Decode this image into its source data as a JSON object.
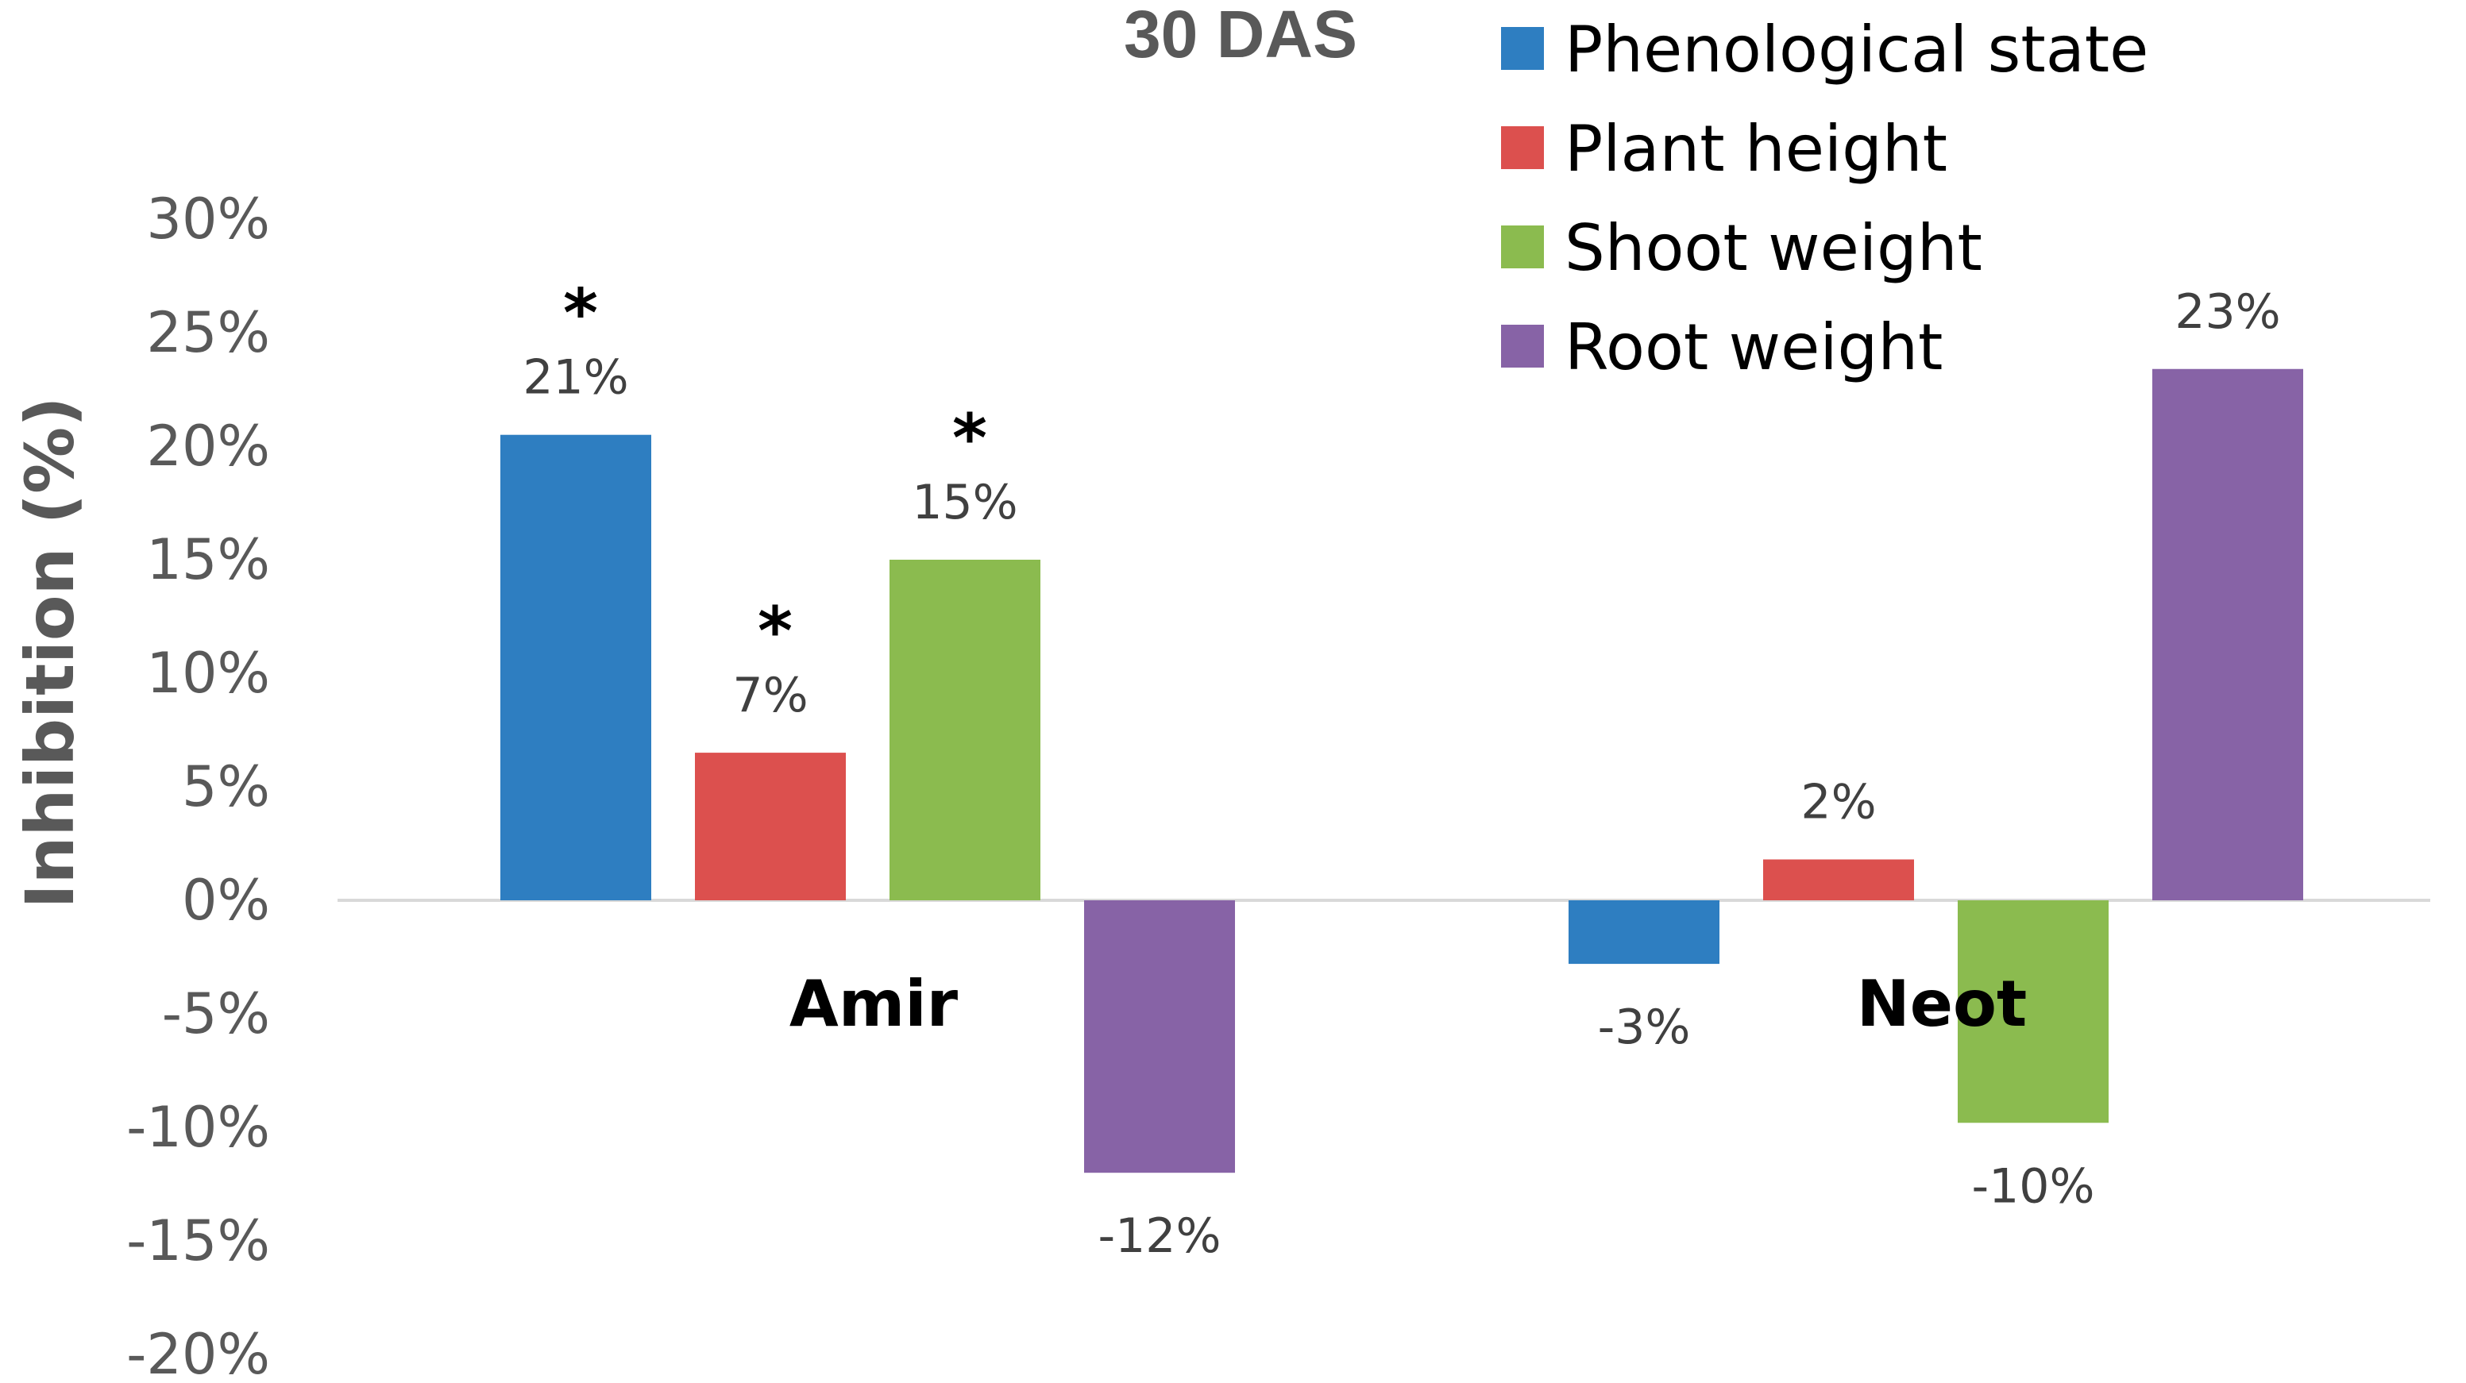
{
  "chart_data": {
    "type": "bar",
    "title": "30 DAS",
    "ylabel": "Inhibition (%)",
    "xlabel": "",
    "categories": [
      "Amir",
      "Neot"
    ],
    "ylim": [
      -20,
      30
    ],
    "yticks": [
      30,
      25,
      20,
      15,
      10,
      5,
      0,
      -5,
      -10,
      -15,
      -20
    ],
    "ytick_labels": [
      "30%",
      "25%",
      "20%",
      "15%",
      "10%",
      "5%",
      "0%",
      "-5%",
      "-10%",
      "-15%",
      "-20%"
    ],
    "legend_position": "top-right",
    "grid": false,
    "series": [
      {
        "name": "Phenological state",
        "color": "#2E7EC1",
        "values": [
          20.5,
          -2.8
        ],
        "labels": [
          "21%",
          "-3%"
        ],
        "significant": [
          true,
          false
        ]
      },
      {
        "name": "Plant height",
        "color": "#DC504E",
        "values": [
          6.5,
          1.8
        ],
        "labels": [
          "7%",
          "2%"
        ],
        "significant": [
          true,
          false
        ]
      },
      {
        "name": "Shoot weight",
        "color": "#8BBB4F",
        "values": [
          15.0,
          -9.8
        ],
        "labels": [
          "15%",
          "-10%"
        ],
        "significant": [
          true,
          false
        ]
      },
      {
        "name": "Root weight",
        "color": "#8763A6",
        "values": [
          -12.0,
          23.4
        ],
        "labels": [
          "-12%",
          "23%"
        ],
        "significant": [
          false,
          false
        ]
      }
    ],
    "significance_marker": "*"
  }
}
